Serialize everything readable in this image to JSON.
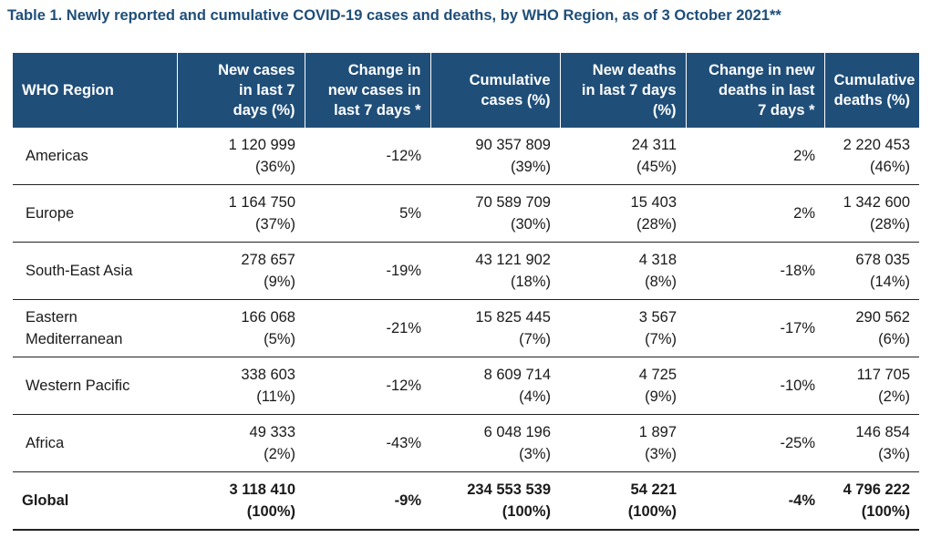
{
  "title": "Table 1. Newly reported and cumulative COVID-19 cases and deaths, by WHO Region, as of 3 October 2021**",
  "headers": {
    "region": "WHO Region",
    "new_cases": [
      "New cases",
      "in last 7",
      "days (%)"
    ],
    "change_cases": [
      "Change in",
      "new cases in",
      "last 7 days *"
    ],
    "cum_cases": [
      "Cumulative",
      "cases (%)"
    ],
    "new_deaths": [
      "New deaths",
      "in last 7 days",
      "(%)"
    ],
    "change_deaths": [
      "Change in new",
      "deaths in last",
      "7 days *"
    ],
    "cum_deaths": [
      "Cumulative",
      "deaths (%)"
    ]
  },
  "rows": [
    {
      "region": [
        "Americas"
      ],
      "new_cases": [
        "1 120 999",
        "(36%)"
      ],
      "change_cases": "-12%",
      "cum_cases": [
        "90 357 809",
        "(39%)"
      ],
      "new_deaths": [
        "24 311",
        "(45%)"
      ],
      "change_deaths": "2%",
      "cum_deaths": [
        "2 220 453",
        "(46%)"
      ]
    },
    {
      "region": [
        "Europe"
      ],
      "new_cases": [
        "1 164 750",
        "(37%)"
      ],
      "change_cases": "5%",
      "cum_cases": [
        "70 589 709",
        "(30%)"
      ],
      "new_deaths": [
        "15 403",
        "(28%)"
      ],
      "change_deaths": "2%",
      "cum_deaths": [
        "1 342 600",
        "(28%)"
      ]
    },
    {
      "region": [
        "South-East Asia"
      ],
      "new_cases": [
        "278 657",
        "(9%)"
      ],
      "change_cases": "-19%",
      "cum_cases": [
        "43 121 902",
        "(18%)"
      ],
      "new_deaths": [
        "4 318",
        "(8%)"
      ],
      "change_deaths": "-18%",
      "cum_deaths": [
        "678 035",
        "(14%)"
      ]
    },
    {
      "region": [
        "Eastern",
        "Mediterranean"
      ],
      "new_cases": [
        "166 068",
        "(5%)"
      ],
      "change_cases": "-21%",
      "cum_cases": [
        "15 825 445",
        "(7%)"
      ],
      "new_deaths": [
        "3 567",
        "(7%)"
      ],
      "change_deaths": "-17%",
      "cum_deaths": [
        "290 562",
        "(6%)"
      ]
    },
    {
      "region": [
        "Western Pacific"
      ],
      "new_cases": [
        "338 603",
        "(11%)"
      ],
      "change_cases": "-12%",
      "cum_cases": [
        "8 609 714",
        "(4%)"
      ],
      "new_deaths": [
        "4 725",
        "(9%)"
      ],
      "change_deaths": "-10%",
      "cum_deaths": [
        "117 705",
        "(2%)"
      ]
    },
    {
      "region": [
        "Africa"
      ],
      "new_cases": [
        "49 333",
        "(2%)"
      ],
      "change_cases": "-43%",
      "cum_cases": [
        "6 048 196",
        "(3%)"
      ],
      "new_deaths": [
        "1 897",
        "(3%)"
      ],
      "change_deaths": "-25%",
      "cum_deaths": [
        "146 854",
        "(3%)"
      ]
    }
  ],
  "global": {
    "region": "Global",
    "new_cases": [
      "3 118 410",
      "(100%)"
    ],
    "change_cases": "-9%",
    "cum_cases": [
      "234 553 539",
      "(100%)"
    ],
    "new_deaths": [
      "54 221",
      "(100%)"
    ],
    "change_deaths": "-4%",
    "cum_deaths": [
      "4 796 222",
      "(100%)"
    ]
  },
  "colors": {
    "header_bg": "#1f4e79",
    "title": "#1f4e79"
  }
}
